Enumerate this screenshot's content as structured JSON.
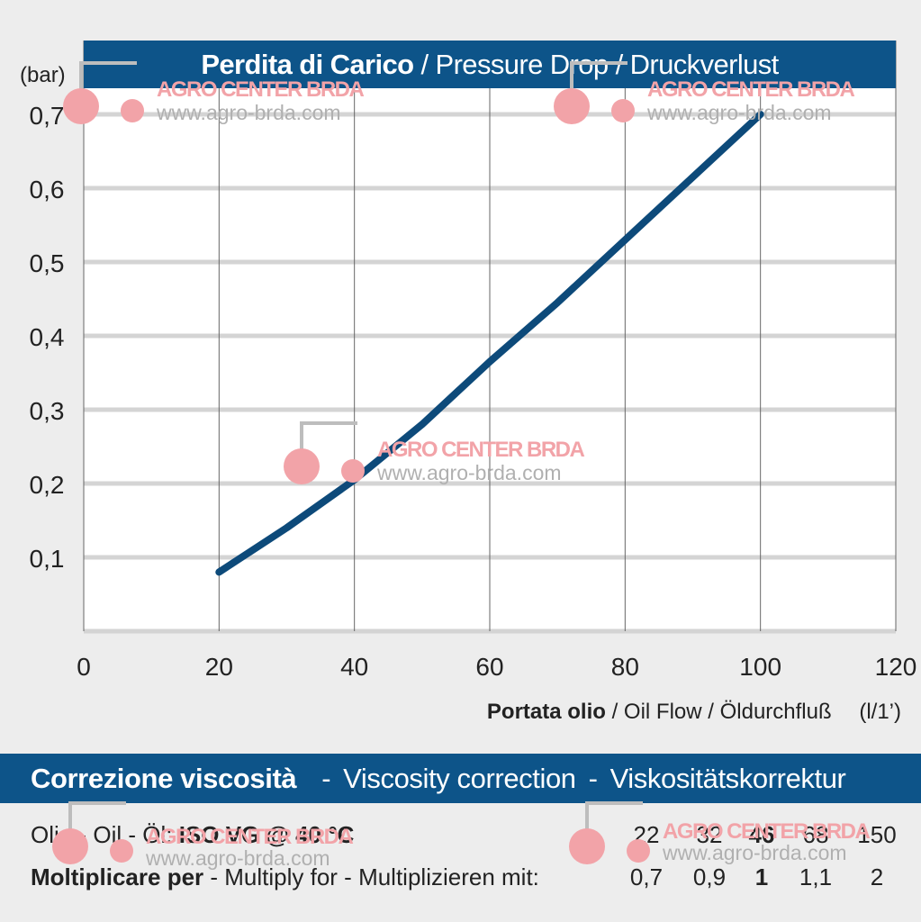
{
  "chart_data": {
    "type": "line",
    "title": "Perdita di Carico",
    "title_translations": "/ Pressure Drop / Druckverlust",
    "y_unit_label": "(bar)",
    "xlabel_bold": "Portata olio",
    "xlabel_rest": "/ Oil Flow  / Öldurchfluß",
    "x_unit": "(l/1’)",
    "xlim": [
      0,
      120
    ],
    "ylim": [
      0,
      0.8
    ],
    "x_ticks": [
      0,
      20,
      40,
      60,
      80,
      100,
      120
    ],
    "x_tick_labels": [
      "0",
      "20",
      "40",
      "60",
      "80",
      "100",
      "120"
    ],
    "y_ticks": [
      0.1,
      0.2,
      0.3,
      0.4,
      0.5,
      0.6,
      0.7
    ],
    "y_tick_labels": [
      "0,1",
      "0,2",
      "0,3",
      "0,4",
      "0,5",
      "0,6",
      "0,7"
    ],
    "grid": true,
    "series": [
      {
        "color": "#0d4a7a",
        "x": [
          20,
          30,
          40,
          50,
          60,
          70,
          80,
          90,
          100
        ],
        "y": [
          0.08,
          0.14,
          0.205,
          0.28,
          0.365,
          0.445,
          0.53,
          0.615,
          0.7
        ]
      }
    ]
  },
  "viscosity": {
    "title_bold": "Correzione viscosità",
    "title_en": "Viscosity correction",
    "title_de": "Viskositätskorrektur",
    "separator": "-",
    "oil_label_prefix": "Olio - Oil - Öl:",
    "oil_label_bold": "ISO VG @ 40 °C",
    "multiply_label_bold": "Moltiplicare per",
    "multiply_label_rest": " - Multiply for - Multiplizieren mit:",
    "grades": [
      "22",
      "32",
      "46",
      "68",
      "150"
    ],
    "factors": [
      "0,7",
      "0,9",
      "1",
      "1,1",
      "2"
    ],
    "highlight_index": 2
  },
  "watermark": {
    "brand": "AGRO CENTER BRDA",
    "url": "www.agro-brda.com"
  },
  "colors": {
    "header_blue": "#0d5489",
    "curve": "#0d4a7a",
    "grid_h": "#d4d4d4",
    "grid_v": "#666666"
  }
}
